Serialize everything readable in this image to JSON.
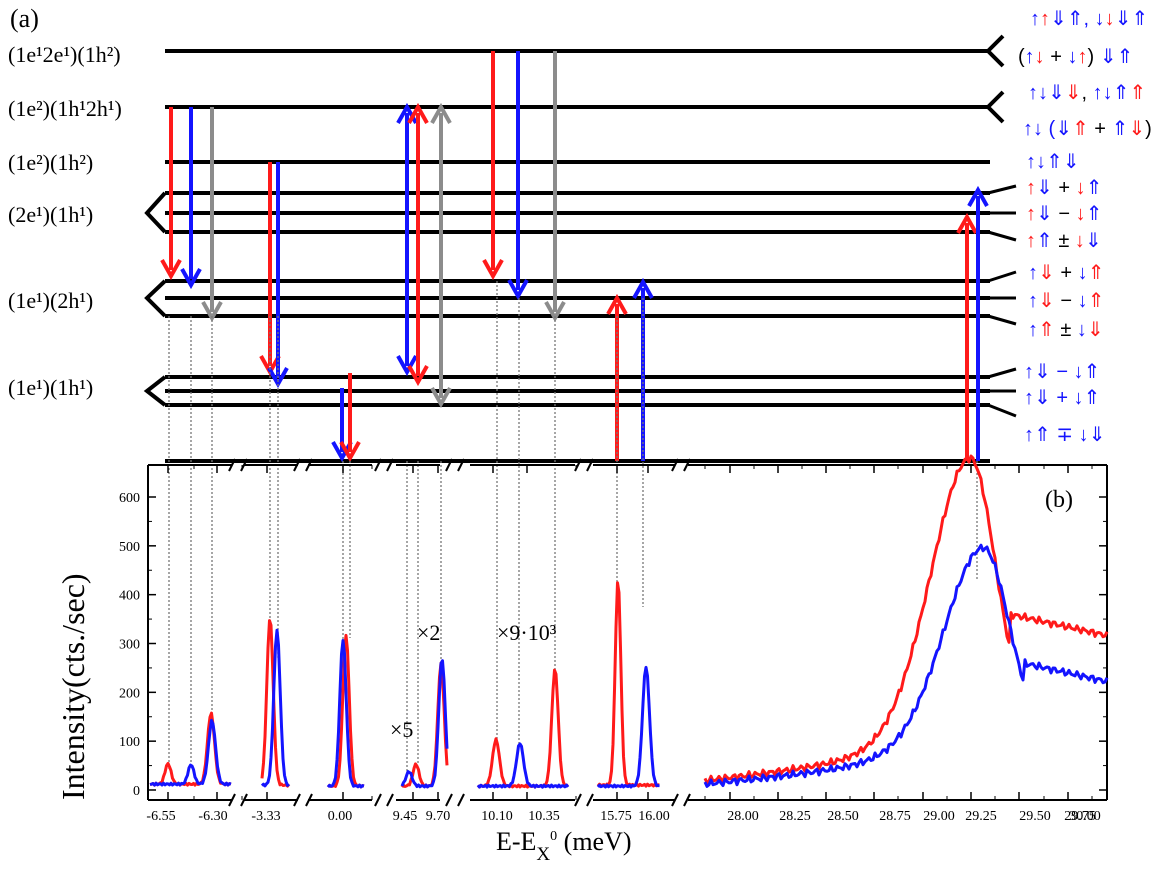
{
  "panel_a": {
    "label": "(a)",
    "level_labels": [
      "(1e¹2e¹)(1h²)",
      "(1e²)(1h¹2h¹)",
      "(1e²)(1h²)",
      "(2e¹)(1h¹)",
      "(1e¹)(2h¹)",
      "(1e¹)(1h¹)"
    ],
    "spin_labels": [
      [
        {
          "t": "↑",
          "c": "blue"
        },
        {
          "t": "↑",
          "c": "red"
        },
        {
          "t": "⇓⇑, ",
          "c": "blue"
        },
        {
          "t": "↓",
          "c": "blue"
        },
        {
          "t": "↓",
          "c": "red"
        },
        {
          "t": "⇓⇑",
          "c": "blue"
        }
      ],
      [
        {
          "t": "(",
          "c": "black"
        },
        {
          "t": "↑",
          "c": "blue"
        },
        {
          "t": "↓",
          "c": "red"
        },
        {
          "t": " + ",
          "c": "black"
        },
        {
          "t": "↓",
          "c": "blue"
        },
        {
          "t": "↑",
          "c": "red"
        },
        {
          "t": ") ",
          "c": "black"
        },
        {
          "t": "⇓⇑",
          "c": "blue"
        }
      ],
      [
        {
          "t": "↑↓⇓",
          "c": "blue"
        },
        {
          "t": "⇓",
          "c": "red"
        },
        {
          "t": ", ",
          "c": "black"
        },
        {
          "t": "↑↓⇑",
          "c": "blue"
        },
        {
          "t": "⇑",
          "c": "red"
        }
      ],
      [
        {
          "t": "↑↓ (",
          "c": "blue"
        },
        {
          "t": "⇓",
          "c": "blue"
        },
        {
          "t": "⇑",
          "c": "red"
        },
        {
          "t": " + ",
          "c": "black"
        },
        {
          "t": "⇑",
          "c": "blue"
        },
        {
          "t": "⇓",
          "c": "red"
        },
        {
          "t": ")",
          "c": "black"
        }
      ],
      [
        {
          "t": "↑↓⇑⇓",
          "c": "blue"
        }
      ],
      [
        {
          "t": "↑",
          "c": "red"
        },
        {
          "t": "⇓",
          "c": "blue"
        },
        {
          "t": " + ",
          "c": "black"
        },
        {
          "t": "↓",
          "c": "red"
        },
        {
          "t": "⇑",
          "c": "blue"
        }
      ],
      [
        {
          "t": "↑",
          "c": "red"
        },
        {
          "t": "⇓",
          "c": "blue"
        },
        {
          "t": " − ",
          "c": "black"
        },
        {
          "t": "↓",
          "c": "red"
        },
        {
          "t": "⇑",
          "c": "blue"
        }
      ],
      [
        {
          "t": "↑",
          "c": "red"
        },
        {
          "t": "⇑",
          "c": "blue"
        },
        {
          "t": " ± ",
          "c": "black"
        },
        {
          "t": "↓",
          "c": "red"
        },
        {
          "t": "⇓",
          "c": "blue"
        }
      ],
      [
        {
          "t": "↑",
          "c": "blue"
        },
        {
          "t": "⇓",
          "c": "red"
        },
        {
          "t": " + ",
          "c": "black"
        },
        {
          "t": "↓",
          "c": "blue"
        },
        {
          "t": "⇑",
          "c": "red"
        }
      ],
      [
        {
          "t": "↑",
          "c": "blue"
        },
        {
          "t": "⇓",
          "c": "red"
        },
        {
          "t": " − ",
          "c": "black"
        },
        {
          "t": "↓",
          "c": "blue"
        },
        {
          "t": "⇑",
          "c": "red"
        }
      ],
      [
        {
          "t": "↑",
          "c": "blue"
        },
        {
          "t": "⇑",
          "c": "red"
        },
        {
          "t": " ± ",
          "c": "black"
        },
        {
          "t": "↓",
          "c": "blue"
        },
        {
          "t": "⇓",
          "c": "red"
        }
      ],
      [
        {
          "t": "↑⇓ − ↓⇑",
          "c": "blue"
        }
      ],
      [
        {
          "t": "↑⇓ + ↓⇑",
          "c": "blue"
        }
      ],
      [
        {
          "t": "↑⇑ ∓ ↓⇓",
          "c": "blue"
        }
      ]
    ]
  },
  "panel_b": {
    "label": "(b)",
    "ylabel": "Intensity(cts./sec)",
    "xlabel_main": "E-E",
    "xlabel_sub": "X",
    "xlabel_sup": "0",
    "xlabel_unit": " (meV)",
    "multipliers": [
      "×5",
      "×2",
      "×9·10³"
    ]
  },
  "colors": {
    "red": "#ff1a1a",
    "blue": "#1414ff",
    "gray": "#8c8c8c",
    "black": "#000000"
  },
  "chart_data": {
    "type": "line",
    "xlabel": "E-E_X⁰ (meV)",
    "ylabel": "Intensity(cts./sec)",
    "ylim": [
      0,
      660
    ],
    "yticks": [
      0,
      100,
      200,
      300,
      400,
      500,
      600
    ],
    "x_tick_labels": [
      "-6.55",
      "-6.30",
      "-3.33",
      "0.00",
      "9.45",
      "9.70",
      "10.10",
      "10.35",
      "15.75",
      "16.00",
      "28.00",
      "28.25",
      "28.50",
      "28.75",
      "29.00",
      "29.25",
      "29.50",
      "29.75",
      "30.00"
    ],
    "series": [
      {
        "color": "red",
        "peaks": [
          [
            -6.55,
            55
          ],
          [
            -6.3,
            160
          ],
          [
            -3.33,
            355
          ],
          [
            0.0,
            320
          ],
          [
            9.45,
            50
          ],
          [
            10.1,
            105
          ],
          [
            10.35,
            250
          ],
          [
            15.75,
            430
          ],
          [
            29.35,
            630
          ]
        ]
      },
      {
        "color": "blue",
        "peaks": [
          [
            -6.45,
            55
          ],
          [
            -6.3,
            145
          ],
          [
            -3.33,
            330
          ],
          [
            0.0,
            310
          ],
          [
            9.45,
            35
          ],
          [
            9.7,
            270
          ],
          [
            10.1,
            97
          ],
          [
            15.95,
            255
          ],
          [
            29.4,
            440
          ]
        ]
      }
    ]
  }
}
